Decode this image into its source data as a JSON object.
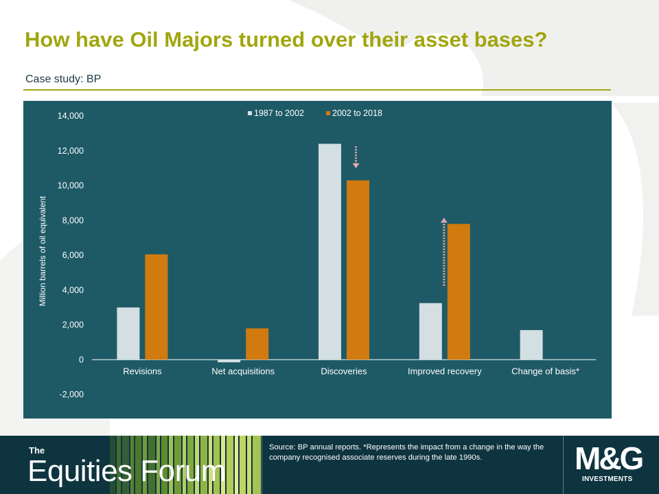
{
  "slide": {
    "title": "How have Oil Majors turned over their asset bases?",
    "subtitle": "Case study: BP"
  },
  "colors": {
    "title": "#a1a60f",
    "panel": "#1e5a66",
    "series_1987_2002": "#d3dfe2",
    "series_2002_2018": "#d07a10",
    "arrow": "#e6a7b6",
    "footer": "#0e3440"
  },
  "chart_data": {
    "type": "bar",
    "ylabel": "Million  barrels of oil equivalent",
    "ylim": [
      -2000,
      14000
    ],
    "yticks": [
      14000,
      12000,
      10000,
      8000,
      6000,
      4000,
      2000,
      0,
      -2000
    ],
    "ytick_labels": [
      "14,000",
      "12,000",
      "10,000",
      "8,000",
      "6,000",
      "4,000",
      "2,000",
      "0",
      "-2,000"
    ],
    "categories": [
      "Revisions",
      "Net acquisitions",
      "Discoveries",
      "Improved recovery",
      "Change of basis*"
    ],
    "series": [
      {
        "name": "1987 to 2002",
        "values": [
          3000,
          -150,
          12400,
          3250,
          1700
        ]
      },
      {
        "name": "2002 to 2018",
        "values": [
          6050,
          1800,
          10300,
          7800,
          null
        ]
      }
    ],
    "legend_position": "top-center",
    "grid": false,
    "annotations": [
      {
        "type": "arrow",
        "category": "Discoveries",
        "direction": "down",
        "from": 12250,
        "to": 11000
      },
      {
        "type": "arrow",
        "category": "Improved recovery",
        "direction": "up",
        "from": 4250,
        "to": 8150
      }
    ]
  },
  "footer": {
    "brand_small": "The",
    "brand": "Equities Forum",
    "source": "Source: BP annual reports. *Represents the impact from a change in the way the company recognised associate reserves  during the late 1990s.",
    "logo": "M&G",
    "logo_sub": "INVESTMENTS"
  }
}
